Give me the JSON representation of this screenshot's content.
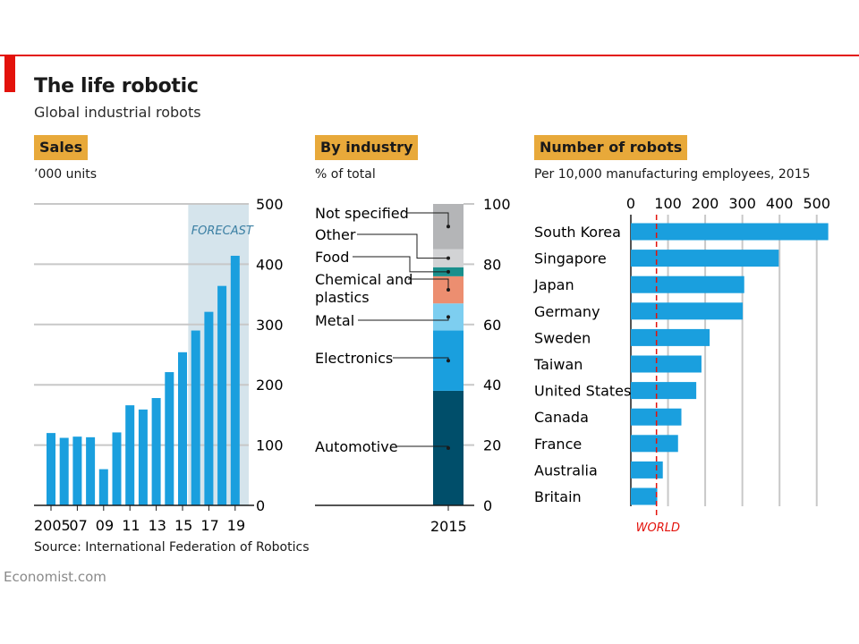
{
  "title": "The life robotic",
  "subtitle": "Global industrial robots",
  "source": "Source: International Federation of Robotics",
  "brand": "Economist.com",
  "colors": {
    "accent": "#e3120b",
    "tag": "#e8a93a",
    "bar": "#1a9fde",
    "forecast": "#d5e4ec",
    "world": "#e3120b"
  },
  "chart_data": [
    {
      "type": "bar",
      "panel_title": "Sales",
      "unit": "’000 units",
      "x_tick_labels": [
        "2005",
        "07",
        "09",
        "11",
        "13",
        "15",
        "17",
        "19"
      ],
      "years": [
        2005,
        2006,
        2007,
        2008,
        2009,
        2010,
        2011,
        2012,
        2013,
        2014,
        2015,
        2016,
        2017,
        2018,
        2019
      ],
      "values": [
        120,
        112,
        114,
        113,
        60,
        121,
        166,
        159,
        178,
        221,
        254,
        290,
        321,
        364,
        414
      ],
      "ylim": [
        0,
        500
      ],
      "y_ticks": [
        0,
        100,
        200,
        300,
        400,
        500
      ],
      "forecast_label": "FORECAST",
      "forecast_from": 2016,
      "grid": true,
      "axis_position": "right"
    },
    {
      "type": "bar",
      "stacked": true,
      "panel_title": "By industry",
      "unit": "% of total",
      "category": "2015",
      "ylim": [
        0,
        100
      ],
      "y_ticks": [
        0,
        20,
        40,
        60,
        80,
        100
      ],
      "segments": [
        {
          "name": "Automotive",
          "value": 38,
          "color": "#004e6a"
        },
        {
          "name": "Electronics",
          "value": 20,
          "color": "#1a9fde"
        },
        {
          "name": "Metal",
          "value": 9,
          "color": "#7dcef0"
        },
        {
          "name": "Chemical and plastics",
          "value": 9,
          "color": "#ec8e70"
        },
        {
          "name": "Food",
          "value": 3,
          "color": "#1a8f8c"
        },
        {
          "name": "Other",
          "value": 6,
          "color": "#d2d3d5"
        },
        {
          "name": "Not specified",
          "value": 15,
          "color": "#b4b5b7"
        }
      ]
    },
    {
      "type": "bar",
      "orientation": "horizontal",
      "panel_title": "Number of robots",
      "unit": "Per 10,000 manufacturing employees, 2015",
      "categories": [
        "South Korea",
        "Singapore",
        "Japan",
        "Germany",
        "Sweden",
        "Taiwan",
        "United States",
        "Canada",
        "France",
        "Australia",
        "Britain"
      ],
      "values": [
        531,
        398,
        305,
        301,
        212,
        190,
        176,
        136,
        127,
        86,
        71
      ],
      "xlim": [
        0,
        530
      ],
      "x_ticks": [
        0,
        100,
        200,
        300,
        400,
        500
      ],
      "reference": {
        "label": "WORLD",
        "value": 69
      },
      "grid": true,
      "axis_position": "top"
    }
  ]
}
